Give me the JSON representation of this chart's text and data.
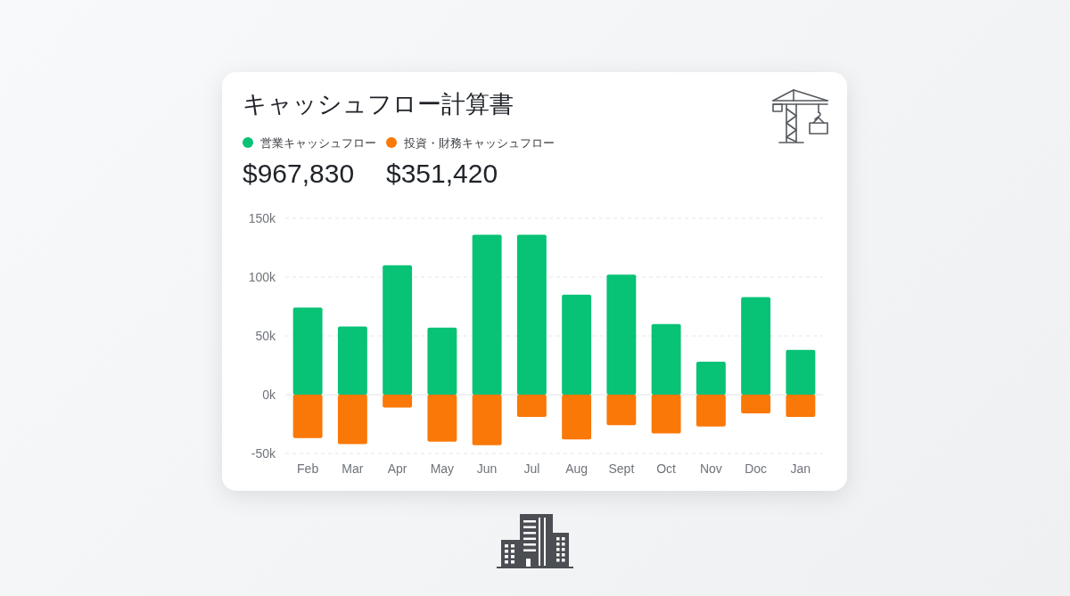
{
  "chart_data": {
    "type": "bar",
    "title": "キャッシュフロー計算書",
    "categories": [
      "Feb",
      "Mar",
      "Apr",
      "May",
      "Jun",
      "Jul",
      "Aug",
      "Sept",
      "Oct",
      "Nov",
      "Doc",
      "Jan"
    ],
    "series": [
      {
        "name": "営業キャッシュフロー",
        "color": "#08c275",
        "values": [
          74000,
          58000,
          110000,
          57000,
          136000,
          136000,
          85000,
          102000,
          60000,
          28000,
          83000,
          38000
        ]
      },
      {
        "name": "投資・財務キャッシュフロー",
        "color": "#fa7808",
        "values": [
          -37000,
          -42000,
          -11000,
          -40000,
          -43000,
          -19000,
          -38000,
          -26000,
          -33000,
          -27000,
          -16000,
          -19000
        ]
      }
    ],
    "stacked": true,
    "ylim": [
      -50000,
      150000
    ],
    "yticks": [
      {
        "value": -50000,
        "label": "-50k"
      },
      {
        "value": 0,
        "label": "0k"
      },
      {
        "value": 50000,
        "label": "50k"
      },
      {
        "value": 100000,
        "label": "100k"
      },
      {
        "value": 150000,
        "label": "150k"
      }
    ],
    "grid": "y",
    "legend": "top left",
    "annotations": [
      "$967,830",
      "$351,420"
    ]
  }
}
